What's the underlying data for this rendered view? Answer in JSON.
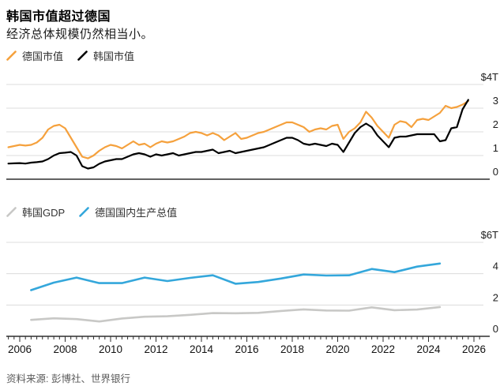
{
  "header": {
    "title": "韩国市值超过德国",
    "subtitle": "经济总体规模仍然相当小。"
  },
  "source": "资料来源: 彭博社、世界银行",
  "colors": {
    "germany_mktcap": "#f5a13d",
    "korea_mktcap": "#000000",
    "korea_gdp": "#c8c8c6",
    "germany_gdp": "#34a7db",
    "gridline": "#dcdcdc",
    "axis": "#2e2e2e"
  },
  "chart_data": [
    {
      "type": "line",
      "name": "market-cap-chart",
      "unit": "$T",
      "ylim": [
        0,
        4
      ],
      "grid": true,
      "legend_position": "top-left",
      "y_ticks": [
        {
          "v": 4,
          "label": "$4T"
        },
        {
          "v": 3,
          "label": "3"
        },
        {
          "v": 2,
          "label": "2"
        },
        {
          "v": 1,
          "label": "1"
        },
        {
          "v": 0,
          "label": "0"
        }
      ],
      "x_axis": {
        "range": [
          2005.5,
          2026.3
        ],
        "minor_tick_step_years": 0.25,
        "major_tick_step_years": 2,
        "tick_labels": [],
        "show_labels": false
      },
      "series": [
        {
          "name": "德国市值",
          "color_key": "germany_mktcap",
          "x_start": 2005.5,
          "x_step": 0.25,
          "values": [
            1.35,
            1.4,
            1.45,
            1.42,
            1.45,
            1.55,
            1.75,
            2.1,
            2.25,
            2.3,
            2.15,
            1.75,
            1.35,
            0.95,
            0.88,
            1.0,
            1.2,
            1.35,
            1.45,
            1.4,
            1.3,
            1.45,
            1.6,
            1.45,
            1.5,
            1.35,
            1.5,
            1.6,
            1.55,
            1.6,
            1.7,
            1.8,
            1.95,
            2.0,
            1.95,
            1.85,
            1.95,
            1.85,
            1.65,
            1.8,
            1.95,
            1.7,
            1.75,
            1.85,
            1.95,
            2.0,
            2.1,
            2.2,
            2.3,
            2.4,
            2.4,
            2.3,
            2.2,
            2.0,
            2.1,
            2.15,
            2.1,
            2.25,
            2.3,
            1.7,
            2.0,
            2.15,
            2.4,
            2.85,
            2.6,
            2.25,
            2.0,
            1.75,
            2.3,
            2.45,
            2.4,
            2.2,
            2.5,
            2.55,
            2.5,
            2.65,
            2.8,
            3.1,
            3.0,
            3.05,
            3.15,
            3.3
          ]
        },
        {
          "name": "韩国市值",
          "color_key": "korea_mktcap",
          "x_start": 2005.5,
          "x_step": 0.25,
          "values": [
            0.66,
            0.67,
            0.68,
            0.66,
            0.7,
            0.72,
            0.75,
            0.85,
            1.0,
            1.1,
            1.12,
            1.15,
            1.0,
            0.55,
            0.45,
            0.5,
            0.65,
            0.75,
            0.8,
            0.85,
            0.85,
            0.95,
            1.05,
            1.1,
            1.05,
            0.95,
            1.05,
            1.0,
            1.05,
            1.1,
            1.0,
            1.05,
            1.1,
            1.15,
            1.15,
            1.2,
            1.25,
            1.1,
            1.15,
            1.2,
            1.1,
            1.15,
            1.2,
            1.25,
            1.3,
            1.35,
            1.45,
            1.55,
            1.65,
            1.75,
            1.75,
            1.65,
            1.5,
            1.45,
            1.5,
            1.45,
            1.4,
            1.5,
            1.45,
            1.15,
            1.55,
            1.95,
            2.2,
            2.35,
            2.2,
            1.85,
            1.6,
            1.35,
            1.75,
            1.8,
            1.8,
            1.85,
            1.9,
            1.9,
            1.9,
            1.9,
            1.6,
            1.65,
            2.15,
            2.2,
            2.95,
            3.35
          ]
        }
      ]
    },
    {
      "type": "line",
      "name": "gdp-chart",
      "unit": "$T",
      "ylim": [
        0,
        6
      ],
      "grid": true,
      "legend_position": "top-left",
      "y_ticks": [
        {
          "v": 6,
          "label": "$6T"
        },
        {
          "v": 4,
          "label": "4"
        },
        {
          "v": 2,
          "label": "2"
        },
        {
          "v": 0,
          "label": "0"
        }
      ],
      "x_axis": {
        "range": [
          2005.5,
          2026.3
        ],
        "minor_tick_step_years": 0.25,
        "major_tick_step_years": 2,
        "tick_labels": [
          "2006",
          "2008",
          "2010",
          "2012",
          "2014",
          "2016",
          "2018",
          "2020",
          "2022",
          "2024",
          "2026"
        ],
        "show_labels": true
      },
      "series": [
        {
          "name": "韩国GDP",
          "color_key": "korea_gdp",
          "x_start": 2006.5,
          "x_step": 1,
          "values": [
            1.05,
            1.15,
            1.1,
            0.95,
            1.14,
            1.25,
            1.28,
            1.37,
            1.48,
            1.47,
            1.5,
            1.62,
            1.72,
            1.65,
            1.64,
            1.85,
            1.67,
            1.71,
            1.87
          ]
        },
        {
          "name": "德国国内生产总值",
          "color_key": "germany_gdp",
          "x_start": 2006.5,
          "x_step": 1,
          "values": [
            2.95,
            3.43,
            3.75,
            3.4,
            3.4,
            3.75,
            3.53,
            3.73,
            3.9,
            3.36,
            3.47,
            3.69,
            3.95,
            3.88,
            3.9,
            4.3,
            4.1,
            4.45,
            4.65
          ]
        }
      ]
    }
  ]
}
